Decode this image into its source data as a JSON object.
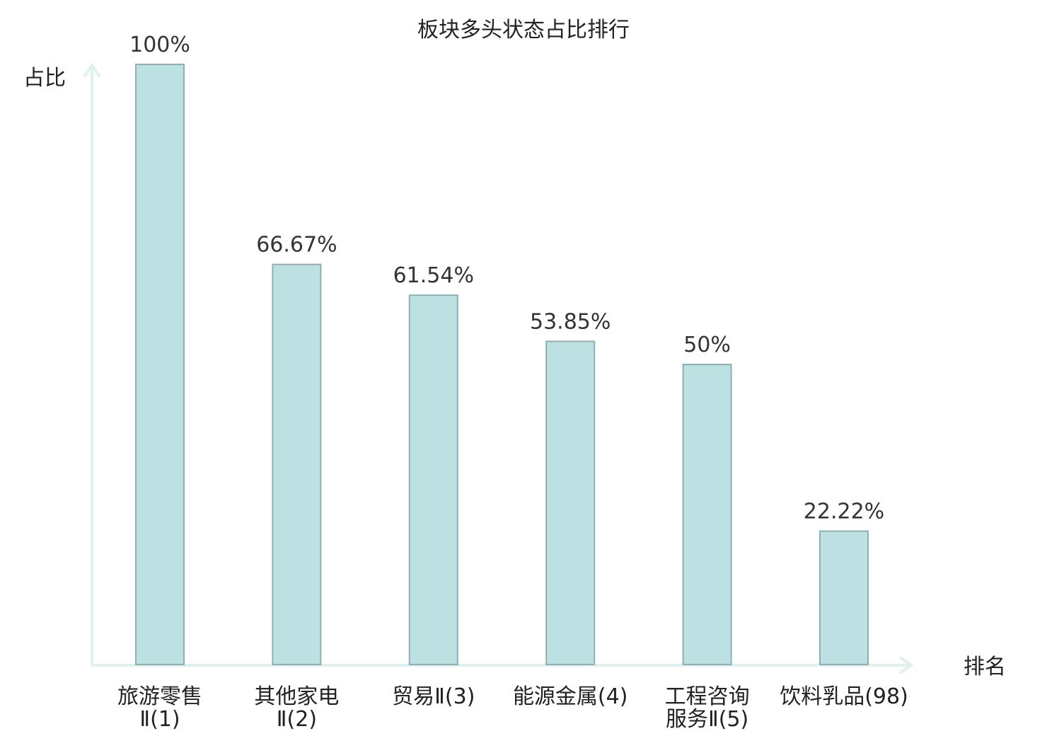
{
  "chart_data": {
    "type": "bar",
    "title": "板块多头状态占比排行",
    "ylabel": "占比",
    "xlabel": "排名",
    "ylim": [
      0,
      100
    ],
    "categories": [
      [
        "旅游零售",
        "Ⅱ(1)"
      ],
      [
        "其他家电",
        "Ⅱ(2)"
      ],
      [
        "贸易Ⅱ(3)"
      ],
      [
        "能源金属(4)"
      ],
      [
        "工程咨询",
        "服务Ⅱ(5)"
      ],
      [
        "饮料乳品(98)"
      ]
    ],
    "values": [
      100,
      66.67,
      61.54,
      53.85,
      50,
      22.22
    ],
    "value_labels": [
      "100%",
      "66.67%",
      "61.54%",
      "53.85%",
      "50%",
      "22.22%"
    ],
    "highlight_index": 5,
    "colors": {
      "bar_fill": "#bde0e3",
      "bar_stroke": "#8fb0b3",
      "axis": "#dff1ef",
      "highlight_label": "#e8141c",
      "text": "#222222"
    },
    "grid": false
  }
}
